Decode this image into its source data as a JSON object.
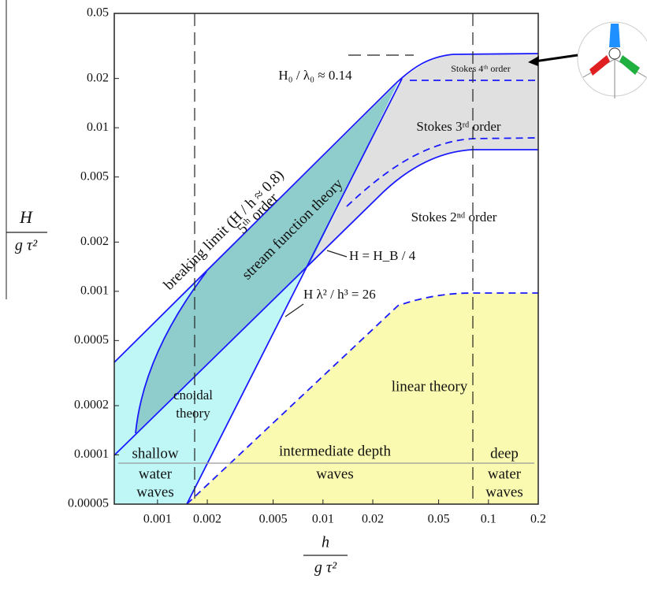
{
  "chart_data": {
    "type": "wave-theory-regions",
    "x_label": {
      "numerator": "h",
      "denominator": "g τ²"
    },
    "y_label": {
      "numerator": "H",
      "denominator": "g τ²"
    },
    "log_scale": true,
    "xlim": [
      0.000548,
      0.2
    ],
    "ylim": [
      5e-05,
      0.05
    ],
    "xticks": [
      0.001,
      0.002,
      0.005,
      0.01,
      0.02,
      0.05,
      0.1,
      0.2
    ],
    "yticks": [
      {
        "value": 5e-05,
        "label": "0.00005"
      },
      0.0001,
      0.0002,
      0.0005,
      0.001,
      0.002,
      0.005,
      0.01,
      0.02,
      0.05
    ],
    "annotations": {
      "breaking_limit": "breaking limit (H / h ≈ 0.8)",
      "fifth_order": "5ᵗʰ order",
      "stream_function": "stream function theory",
      "steepness": "H₀ / λ₀ ≈ 0.14",
      "stokes_4": "Stokes 4ᵗʰ order",
      "stokes_3": "Stokes 3ʳᵈ order",
      "stokes_2": "Stokes 2ⁿᵈ order",
      "h_hb": "H = H_B / 4",
      "ursell": "H λ² / h³ = 26",
      "cnoidal": [
        "cnoidal",
        "theory"
      ],
      "linear": "linear theory",
      "shallow": [
        "shallow",
        "water",
        "waves"
      ],
      "intermediate": [
        "intermediate depth",
        "waves"
      ],
      "deep": [
        "deep",
        "water",
        "waves"
      ]
    }
  }
}
